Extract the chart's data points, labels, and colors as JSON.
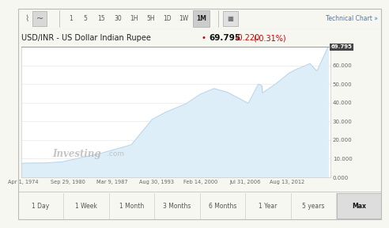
{
  "title_left": "USD/INR - US Dollar Indian Rupee",
  "price": "69.795",
  "change": "-0.220",
  "change_pct": "(-0.31%)",
  "change_color": "#cc0000",
  "bg_color": "#f7f7f2",
  "chart_bg": "#ffffff",
  "line_color": "#b8d4e8",
  "fill_color": "#ddeef8",
  "border_color": "#cccccc",
  "toolbar_bg": "#ebebeb",
  "ytick_labels": [
    "0.000",
    "10.000",
    "20.000",
    "30.000",
    "40.000",
    "50.000",
    "60.000"
  ],
  "ytick_values": [
    0,
    10,
    20,
    30,
    40,
    50,
    60
  ],
  "xtick_labels": [
    "Apr 1, 1974",
    "Sep 29, 1980",
    "Mar 9, 1987",
    "Aug 30, 1993",
    "Feb 14, 2000",
    "Jul 31, 2006",
    "Aug 13, 2012"
  ],
  "xtick_years": [
    1974.25,
    1980.75,
    1987.2,
    1993.66,
    2000.12,
    2006.58,
    2012.62
  ],
  "current_price_box": "69.795",
  "top_toolbar_items": [
    "1",
    "5",
    "15",
    "30",
    "1H",
    "5H",
    "1D",
    "1W",
    "1M"
  ],
  "bottom_toolbar_items": [
    "1 Day",
    "1 Week",
    "1 Month",
    "3 Months",
    "6 Months",
    "1 Year",
    "5 years",
    "Max"
  ],
  "active_bottom": "Max",
  "active_top": "1M",
  "tech_chart_label": "Technical Chart »",
  "watermark_text": "Investing",
  "watermark_dot": ".com"
}
